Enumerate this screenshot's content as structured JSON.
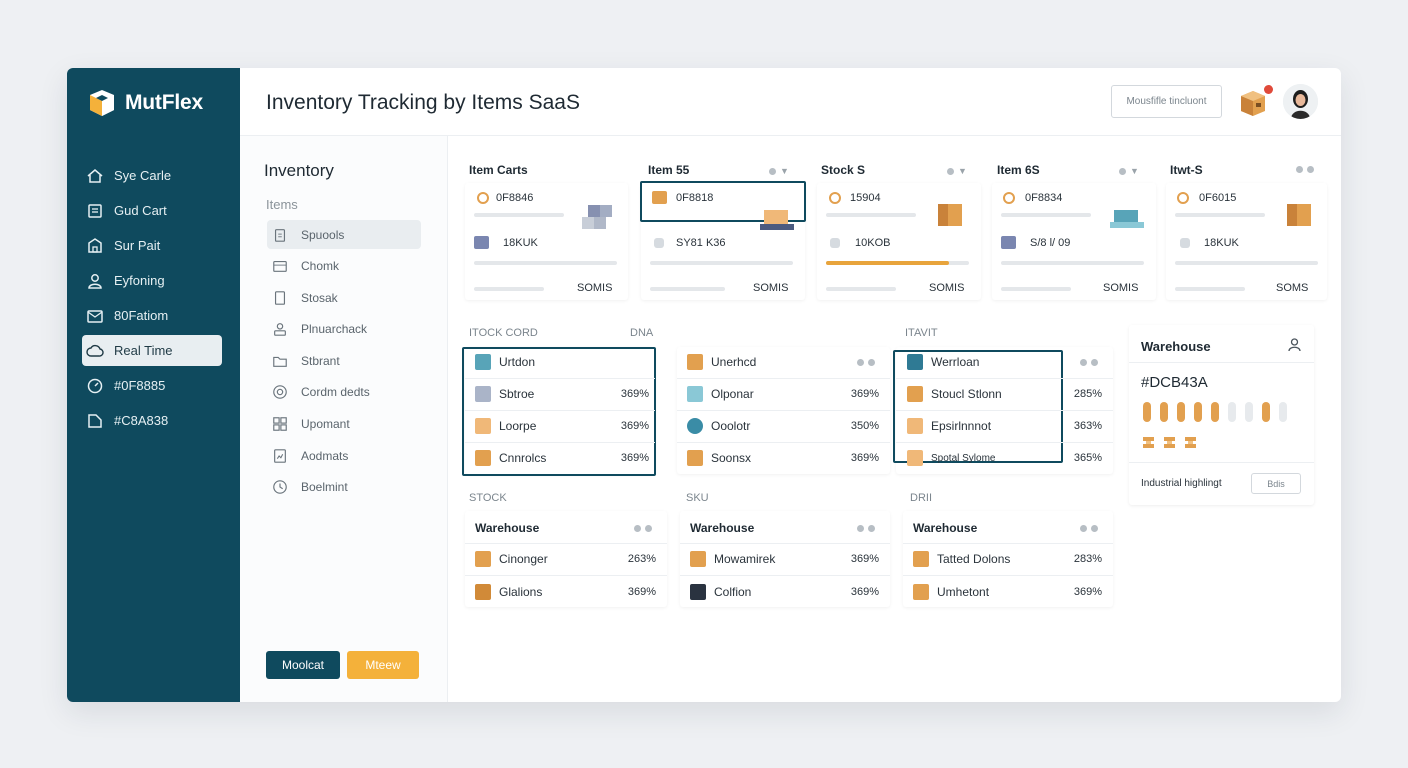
{
  "app": {
    "brand": "MutFlex"
  },
  "header": {
    "title": "Inventory Tracking by Items SaaS",
    "search_placeholder": "Mousfifle tincluont"
  },
  "sidebar": {
    "items": [
      {
        "label": "Sye Carle",
        "icon": "home-icon"
      },
      {
        "label": "Gud Cart",
        "icon": "document-icon"
      },
      {
        "label": "Sur Pait",
        "icon": "building-icon"
      },
      {
        "label": "Eyfoning",
        "icon": "user-icon"
      },
      {
        "label": "80Fatiom",
        "icon": "mail-icon"
      },
      {
        "label": "Real Time",
        "icon": "cloud-icon",
        "active": true
      },
      {
        "label": "#0F8885",
        "icon": "gauge-icon"
      },
      {
        "label": "#C8A838",
        "icon": "bookmark-icon"
      }
    ],
    "buttons": {
      "primary": "Moolcat",
      "secondary": "Mteew"
    }
  },
  "inventory": {
    "title": "Inventory",
    "subtitle": "Items",
    "items": [
      {
        "label": "Spuools",
        "active": true
      },
      {
        "label": "Chomk"
      },
      {
        "label": "Stosak"
      },
      {
        "label": "Plnuarchack"
      },
      {
        "label": "Stbrant"
      },
      {
        "label": "Cordm dedts"
      },
      {
        "label": "Upomant"
      },
      {
        "label": "Aodmats"
      },
      {
        "label": "Boelmint"
      }
    ]
  },
  "top_cards": [
    {
      "title": "Item Carts",
      "code": "0F8846",
      "qty": "18KUK",
      "total": "SOMIS",
      "selected": false
    },
    {
      "title": "Item 55",
      "code": "0F8818",
      "qty": "SY81 K36",
      "total": "SOMIS",
      "selected": true
    },
    {
      "title": "Stock S",
      "code": "15904",
      "qty": "10KOB",
      "total": "SOMIS",
      "selected": false,
      "progress": 0.86
    },
    {
      "title": "Item 6S",
      "code": "0F8834",
      "qty": "S/8 l/ 09",
      "total": "SOMIS",
      "selected": false
    },
    {
      "title": "Itwt-S",
      "code": "0F6015",
      "qty": "18KUK",
      "total": "SOMS",
      "selected": false
    }
  ],
  "section_labels": {
    "stock_control": "ITOCK CORD",
    "mid": "DNA",
    "right": "ITAVIT",
    "stock": "STOCK",
    "sku": "SKU",
    "dri": "DRII"
  },
  "stock_cols": [
    {
      "header": "Urtdon",
      "rows": [
        {
          "label": "Sbtroe",
          "pct": "369%"
        },
        {
          "label": "Loorpe",
          "pct": "369%"
        },
        {
          "label": "Cnnrolcs",
          "pct": "369%"
        }
      ]
    },
    {
      "header": "Unerhcd",
      "rows": [
        {
          "label": "Olponar",
          "pct": "369%"
        },
        {
          "label": "Ooolotr",
          "pct": "350%"
        },
        {
          "label": "Soonsx",
          "pct": "369%"
        }
      ]
    },
    {
      "header": "Werrloan",
      "rows": [
        {
          "label": "Stoucl Stlonn",
          "pct": "285%"
        },
        {
          "label": "Epsirlnnnot",
          "pct": "363%"
        },
        {
          "label": "Spotal Sylome",
          "pct": "365%"
        }
      ]
    }
  ],
  "warehouse_cards": [
    {
      "title": "Warehouse",
      "rows": [
        {
          "label": "Cinonger",
          "pct": "263%"
        },
        {
          "label": "Glalions",
          "pct": "369%"
        }
      ]
    },
    {
      "title": "Warehouse",
      "rows": [
        {
          "label": "Mowamirek",
          "pct": "369%"
        },
        {
          "label": "Colfion",
          "pct": "369%"
        }
      ]
    },
    {
      "title": "Warehouse",
      "rows": [
        {
          "label": "Tatted Dolons",
          "pct": "283%"
        },
        {
          "label": "Umhetont",
          "pct": "369%"
        }
      ]
    }
  ],
  "side_card": {
    "title": "Warehouse",
    "hex": "#DCB43A",
    "footer_label": "Industrial highlingt",
    "footer_button": "Bdis"
  },
  "colors": {
    "teal": "#0F4A5E",
    "amber": "#F4B13A",
    "box": "#E2A04F"
  }
}
